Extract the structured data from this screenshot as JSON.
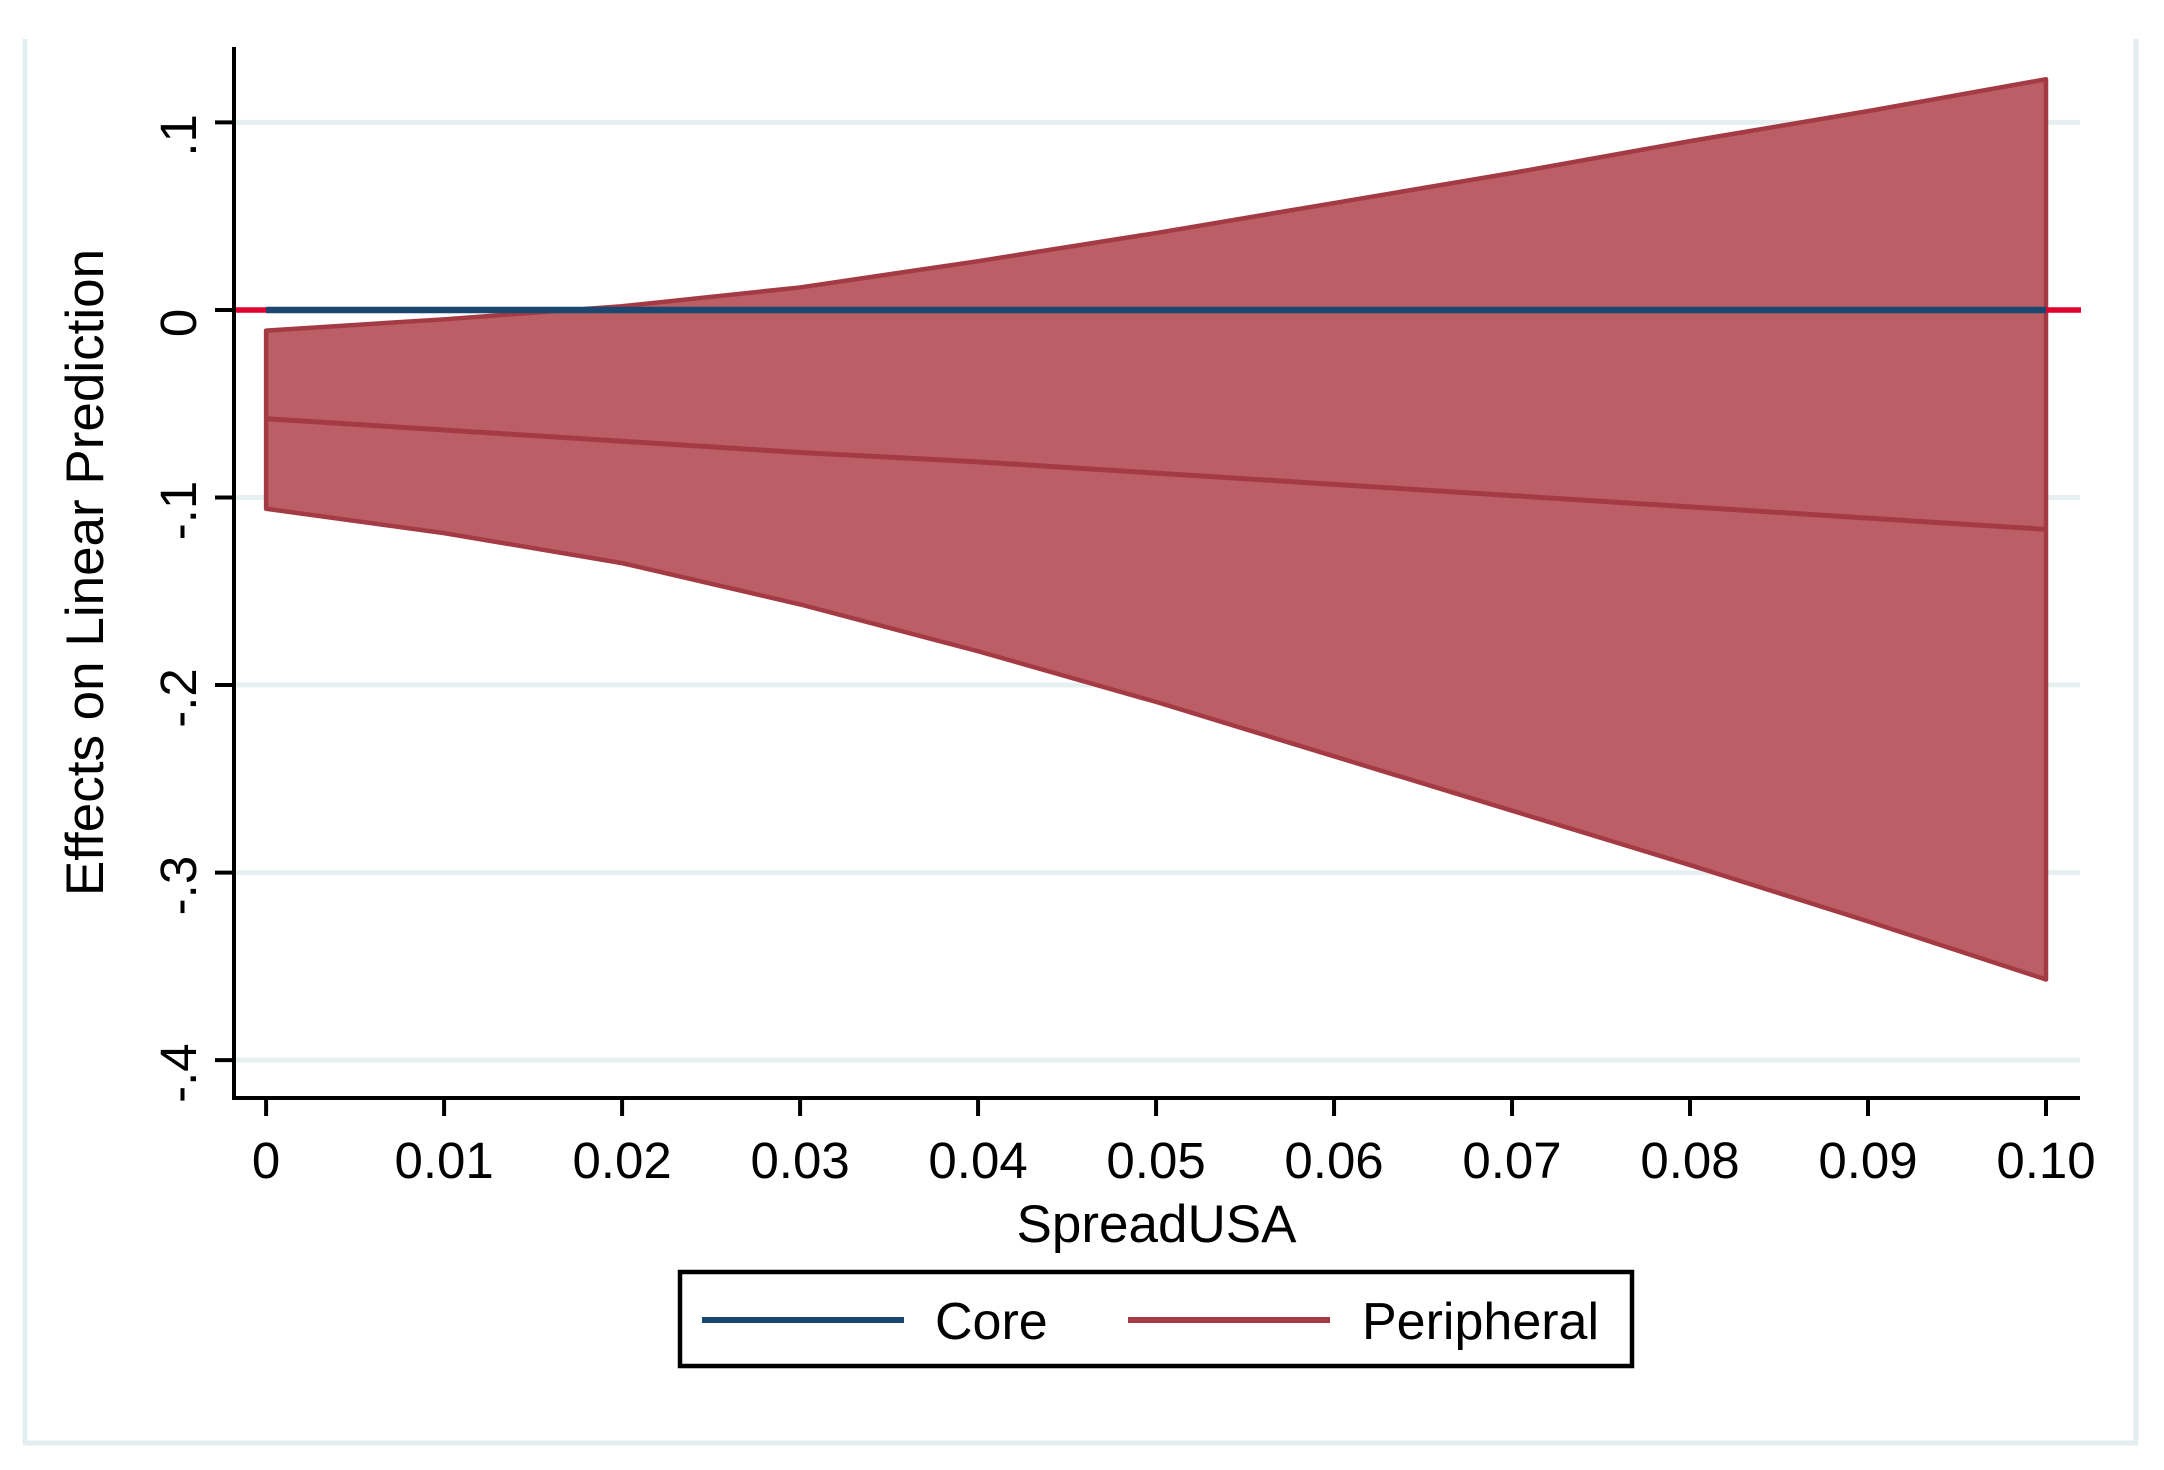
{
  "chart_data": {
    "type": "area",
    "title": "",
    "xlabel": "SpreadUSA",
    "ylabel": "Effects on Linear Prediction",
    "x": [
      0,
      0.01,
      0.02,
      0.03,
      0.04,
      0.05,
      0.06,
      0.07,
      0.08,
      0.09,
      0.1
    ],
    "x_tick_labels": [
      "0",
      "0.01",
      "0.02",
      "0.03",
      "0.04",
      "0.05",
      "0.06",
      "0.07",
      "0.08",
      "0.09",
      "0.10"
    ],
    "y_ticks": [
      0.1,
      0,
      -0.1,
      -0.2,
      -0.3,
      -0.4
    ],
    "y_tick_labels": [
      ".1",
      "0",
      "-.1",
      "-.2",
      "-.3",
      "-.4"
    ],
    "xlim": [
      -0.00186,
      0.10191
    ],
    "ylim": [
      -0.4202,
      0.1402
    ],
    "grid": "horizontal",
    "legend_position": "bottom",
    "series": [
      {
        "name": "Core",
        "kind": "line",
        "color": "#1a476f",
        "values": [
          0,
          0,
          0,
          0,
          0,
          0,
          0,
          0,
          0,
          0,
          0
        ]
      },
      {
        "name": "Peripheral",
        "kind": "line",
        "color": "#a43b44",
        "values": [
          -0.058,
          -0.064,
          -0.07,
          -0.076,
          -0.081,
          -0.087,
          -0.093,
          -0.099,
          -0.105,
          -0.111,
          -0.117
        ]
      },
      {
        "name": "Peripheral 95% CI",
        "kind": "band",
        "line_color": "#a43b44",
        "fill_color": "#bb5e66",
        "upper": [
          -0.011,
          -0.005,
          0.002,
          0.012,
          0.026,
          0.041,
          0.057,
          0.073,
          0.09,
          0.106,
          0.123
        ],
        "lower": [
          -0.106,
          -0.119,
          -0.135,
          -0.157,
          -0.182,
          -0.209,
          -0.238,
          -0.267,
          -0.296,
          -0.326,
          -0.357
        ]
      }
    ],
    "reference_line": {
      "y": 0,
      "color": "#e0012f"
    },
    "legend": [
      {
        "label": "Core",
        "color": "#1a476f"
      },
      {
        "label": "Peripheral",
        "color": "#a43b44"
      }
    ],
    "colors": {
      "axis": "#000000",
      "gridline": "#e7f0f1",
      "outer_frame": "#e3eef0",
      "plot_background": "#ffffff",
      "legend_border": "#000000"
    }
  }
}
